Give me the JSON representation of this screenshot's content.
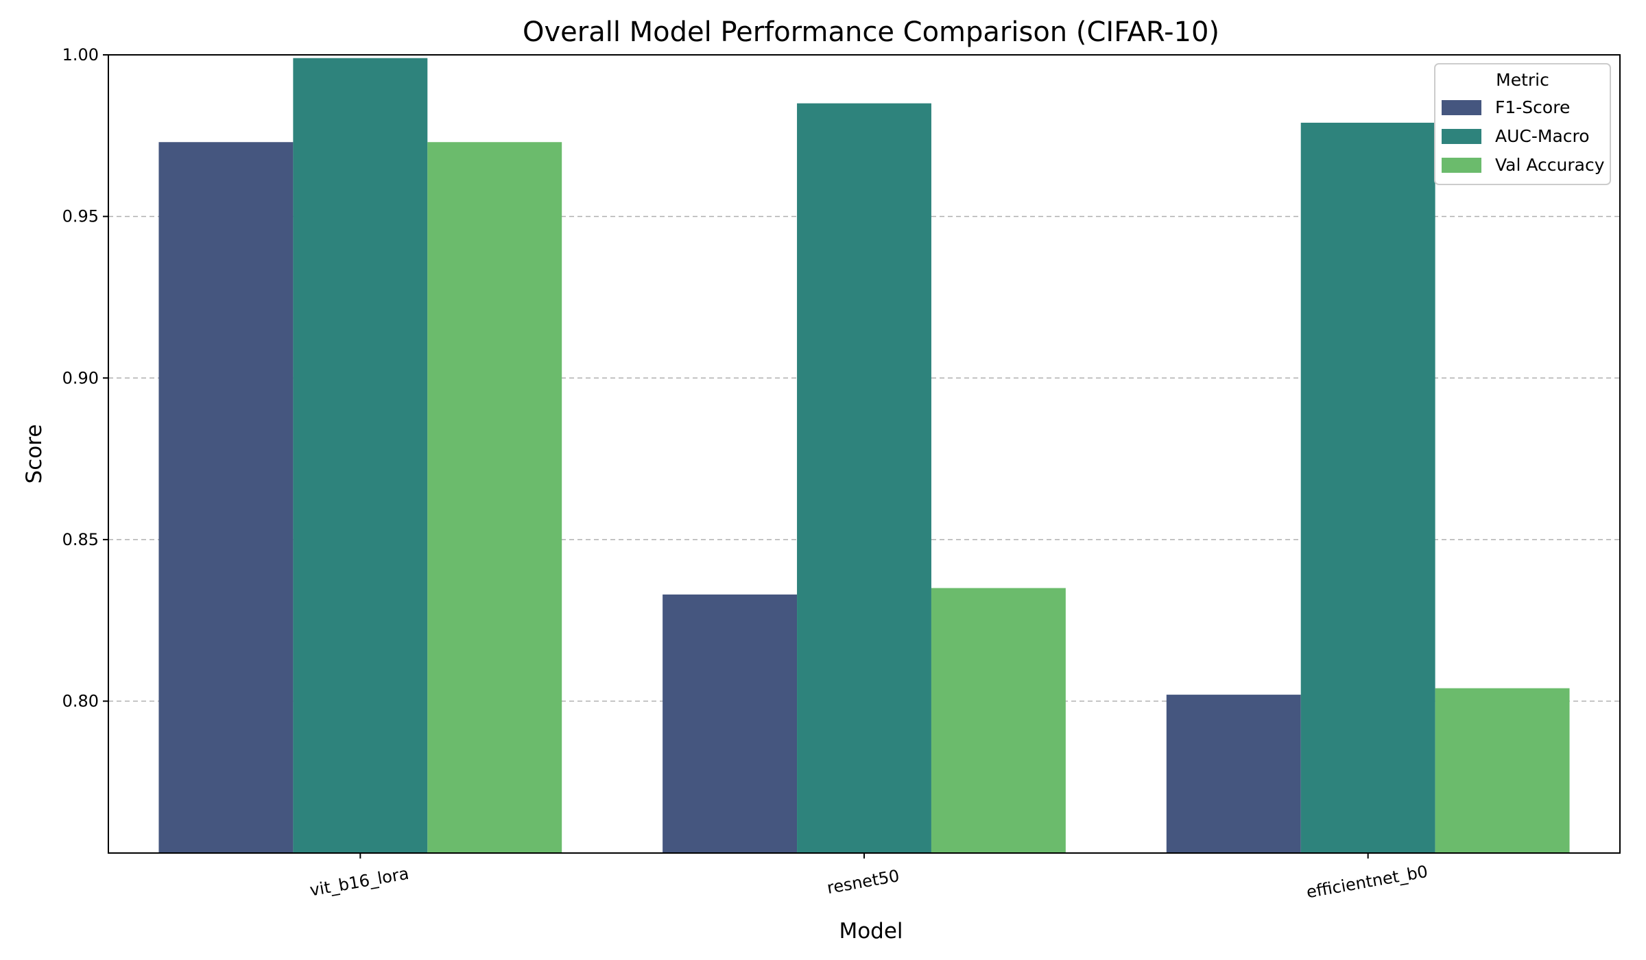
{
  "chart_data": {
    "type": "bar",
    "title": "Overall Model Performance Comparison (CIFAR-10)",
    "xlabel": "Model",
    "ylabel": "Score",
    "categories": [
      "vit_b16_lora",
      "resnet50",
      "efficientnet_b0"
    ],
    "series": [
      {
        "name": "F1-Score",
        "color": "#45567f",
        "values": [
          0.973,
          0.833,
          0.802
        ]
      },
      {
        "name": "AUC-Macro",
        "color": "#2e837c",
        "values": [
          0.999,
          0.985,
          0.979
        ]
      },
      {
        "name": "Val Accuracy",
        "color": "#6bbb6c",
        "values": [
          0.973,
          0.835,
          0.804
        ]
      }
    ],
    "ylim": [
      0.753,
      1.0
    ],
    "yticks": [
      "0.80",
      "0.85",
      "0.90",
      "0.95",
      "1.00"
    ],
    "grid": "y-dashed",
    "legend": {
      "title": "Metric",
      "position": "top-right"
    }
  }
}
